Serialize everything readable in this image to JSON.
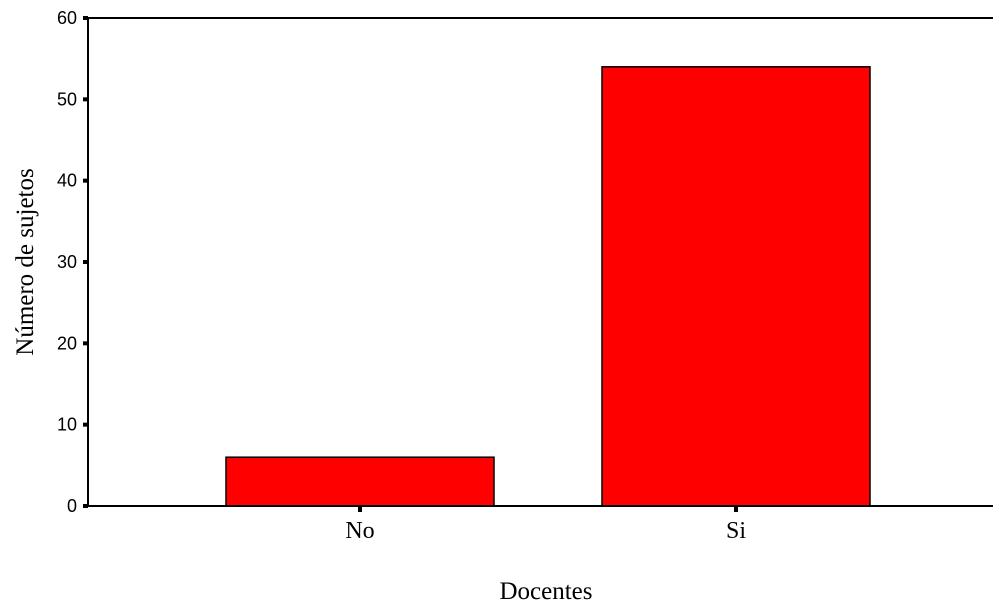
{
  "chart_data": {
    "type": "bar",
    "categories": [
      "No",
      "Si"
    ],
    "values": [
      6,
      54
    ],
    "xlabel": "Docentes",
    "ylabel": "Número de sujetos",
    "ylim": [
      0,
      60
    ],
    "yticks": [
      0,
      10,
      20,
      30,
      40,
      50,
      60
    ],
    "grid": false,
    "colors": {
      "bar_fill": "#ff0000",
      "bar_stroke": "#000000",
      "axis": "#000000"
    }
  }
}
